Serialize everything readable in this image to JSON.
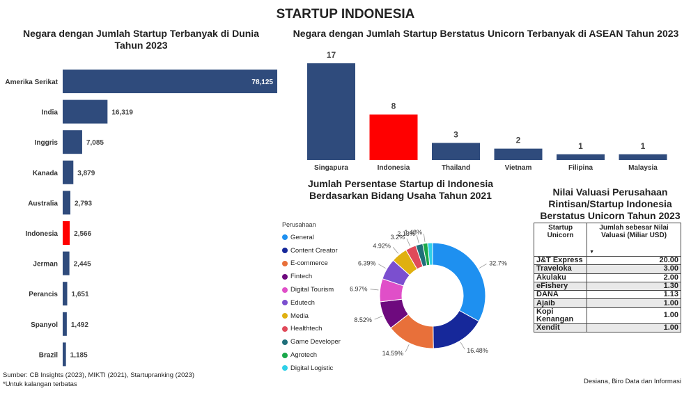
{
  "title": "STARTUP INDONESIA",
  "chart_data": [
    {
      "type": "bar",
      "orientation": "horizontal",
      "title": "Negara dengan Jumlah Startup Terbanyak di Dunia Tahun 2023",
      "categories": [
        "Amerika Serikat",
        "India",
        "Inggris",
        "Kanada",
        "Australia",
        "Indonesia",
        "Jerman",
        "Perancis",
        "Spanyol",
        "Brazil"
      ],
      "values": [
        78125,
        16319,
        7085,
        3879,
        2793,
        2566,
        2445,
        1651,
        1492,
        1185
      ],
      "value_labels": [
        "78,125",
        "16,319",
        "7,085",
        "3,879",
        "2,793",
        "2,566",
        "2,445",
        "1,651",
        "1,492",
        "1,185"
      ],
      "bar_color": "#2f4b7c",
      "highlight_color": "#ff0000",
      "highlight_category": "Indonesia",
      "xlim": [
        0,
        78125
      ]
    },
    {
      "type": "bar",
      "title": "Negara dengan Jumlah Startup Berstatus Unicorn Terbanyak di ASEAN Tahun 2023",
      "categories": [
        "Singapura",
        "Indonesia",
        "Thailand",
        "Vietnam",
        "Filipina",
        "Malaysia"
      ],
      "values": [
        17,
        8,
        3,
        2,
        1,
        1
      ],
      "bar_color": "#2f4b7c",
      "highlight_color": "#ff0000",
      "highlight_category": "Indonesia",
      "ylim": [
        0,
        17
      ]
    },
    {
      "type": "pie",
      "donut": true,
      "title": "Jumlah Persentase Startup di Indonesia Berdasarkan Bidang Usaha Tahun 2021",
      "legend_title": "Perusahaan",
      "legend_position": "left",
      "categories": [
        "General",
        "Content Creator",
        "E-commerce",
        "Fintech",
        "Digital Tourism",
        "Edutech",
        "Media",
        "Healthtech",
        "Game Developer",
        "Agrotech",
        "Digital Logistic"
      ],
      "values": [
        32.7,
        16.48,
        14.59,
        8.52,
        6.97,
        6.39,
        4.92,
        3.2,
        2.13,
        1.48,
        1.48
      ],
      "value_labels": [
        "32.7%",
        "16.48%",
        "14.59%",
        "8.52%",
        "6.97%",
        "6.39%",
        "4.92%",
        "3.2%",
        "2.13%",
        "1.48%",
        ""
      ],
      "colors": [
        "#1e90f0",
        "#16289a",
        "#e8703a",
        "#6e0a7e",
        "#e04fc8",
        "#7b4fcf",
        "#e0b010",
        "#e04a5a",
        "#1f6f7a",
        "#1aa84a",
        "#2fd0e8"
      ]
    },
    {
      "type": "table",
      "title": "Nilai Valuasi Perusahaan Rintisan/Startup Indonesia Berstatus Unicorn Tahun 2023",
      "columns": [
        "Startup Unicorn",
        "Jumlah sebesar Nilai Valuasi (Miliar USD)"
      ],
      "rows": [
        [
          "J&T Express",
          "20.00"
        ],
        [
          "Traveloka",
          "3.00"
        ],
        [
          "Akulaku",
          "2.00"
        ],
        [
          "eFishery",
          "1.30"
        ],
        [
          "DANA",
          "1.13"
        ],
        [
          "Ajaib",
          "1.00"
        ],
        [
          "Kopi Kenangan",
          "1.00"
        ],
        [
          "Xendit",
          "1.00"
        ]
      ]
    }
  ],
  "notes": {
    "source": "Sumber: CB Insights (2023), MIKTI (2021), Startupranking (2023)",
    "footnote": "*Untuk kalangan terbatas",
    "credit": "Desiana, Biro Data dan Informasi"
  }
}
